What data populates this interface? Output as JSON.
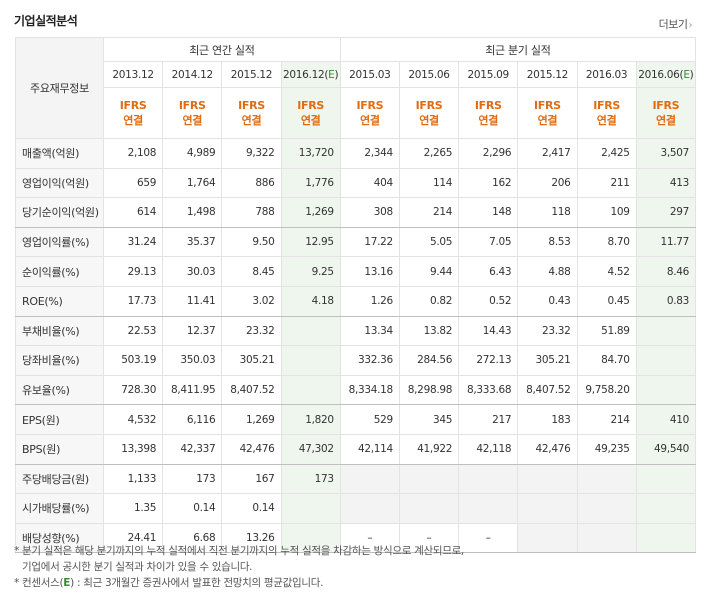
{
  "section_title": "기업실적분석",
  "more_label": "더보기",
  "row_header_title": "주요재무정보",
  "groups": {
    "annual": "최근 연간 실적",
    "quarterly": "최근 분기 실적"
  },
  "periods": [
    "2013.12",
    "2014.12",
    "2015.12",
    "2016.12(E)",
    "2015.03",
    "2015.06",
    "2015.09",
    "2015.12",
    "2016.03",
    "2016.06(E)"
  ],
  "basis_line1": "IFRS",
  "basis_line2": "연결",
  "rows": [
    {
      "label": "매출액(억원)",
      "values": [
        "2,108",
        "4,989",
        "9,322",
        "13,720",
        "2,344",
        "2,265",
        "2,296",
        "2,417",
        "2,425",
        "3,507"
      ]
    },
    {
      "label": "영업이익(억원)",
      "values": [
        "659",
        "1,764",
        "886",
        "1,776",
        "404",
        "114",
        "162",
        "206",
        "211",
        "413"
      ]
    },
    {
      "label": "당기순이익(억원)",
      "values": [
        "614",
        "1,498",
        "788",
        "1,269",
        "308",
        "214",
        "148",
        "118",
        "109",
        "297"
      ]
    },
    {
      "label": "영업이익률(%)",
      "values": [
        "31.24",
        "35.37",
        "9.50",
        "12.95",
        "17.22",
        "5.05",
        "7.05",
        "8.53",
        "8.70",
        "11.77"
      ]
    },
    {
      "label": "순이익률(%)",
      "values": [
        "29.13",
        "30.03",
        "8.45",
        "9.25",
        "13.16",
        "9.44",
        "6.43",
        "4.88",
        "4.52",
        "8.46"
      ]
    },
    {
      "label": "ROE(%)",
      "values": [
        "17.73",
        "11.41",
        "3.02",
        "4.18",
        "1.26",
        "0.82",
        "0.52",
        "0.43",
        "0.45",
        "0.83"
      ]
    },
    {
      "label": "부채비율(%)",
      "values": [
        "22.53",
        "12.37",
        "23.32",
        "",
        "13.34",
        "13.82",
        "14.43",
        "23.32",
        "51.89",
        ""
      ]
    },
    {
      "label": "당좌비율(%)",
      "values": [
        "503.19",
        "350.03",
        "305.21",
        "",
        "332.36",
        "284.56",
        "272.13",
        "305.21",
        "84.70",
        ""
      ]
    },
    {
      "label": "유보율(%)",
      "values": [
        "728.30",
        "8,411.95",
        "8,407.52",
        "",
        "8,334.18",
        "8,298.98",
        "8,333.68",
        "8,407.52",
        "9,758.20",
        ""
      ]
    },
    {
      "label": "EPS(원)",
      "values": [
        "4,532",
        "6,116",
        "1,269",
        "1,820",
        "529",
        "345",
        "217",
        "183",
        "214",
        "410"
      ]
    },
    {
      "label": "BPS(원)",
      "values": [
        "13,398",
        "42,337",
        "42,476",
        "47,302",
        "42,114",
        "41,922",
        "42,118",
        "42,476",
        "49,235",
        "49,540"
      ]
    },
    {
      "label": "주당배당금(원)",
      "values": [
        "1,133",
        "173",
        "167",
        "173",
        "",
        "",
        "",
        "",
        "",
        ""
      ]
    },
    {
      "label": "시가배당률(%)",
      "values": [
        "1.35",
        "0.14",
        "0.14",
        "",
        "",
        "",
        "",
        "",
        "",
        ""
      ]
    },
    {
      "label": "배당성향(%)",
      "values": [
        "24.41",
        "6.68",
        "13.26",
        "",
        "–",
        "–",
        "–",
        "",
        "",
        ""
      ]
    }
  ],
  "notes": {
    "line1": "분기 실적은 해당 분기까지의 누적 실적에서 직전 분기까지의 누적 실적을 차감하는 방식으로 계산되므로,",
    "line2": "기업에서 공시한 분기 실적과 차이가 있을 수 있습니다.",
    "line3_prefix": "컨센서스(",
    "line3_mark": "E",
    "line3_suffix": ") : 최근 3개월간 증권사에서 발표한 전망치의 평균값입니다."
  },
  "colors": {
    "accent_orange": "#e26b11",
    "estimate_green": "#3a8a3a",
    "estimate_bg": "#eef6ee"
  }
}
